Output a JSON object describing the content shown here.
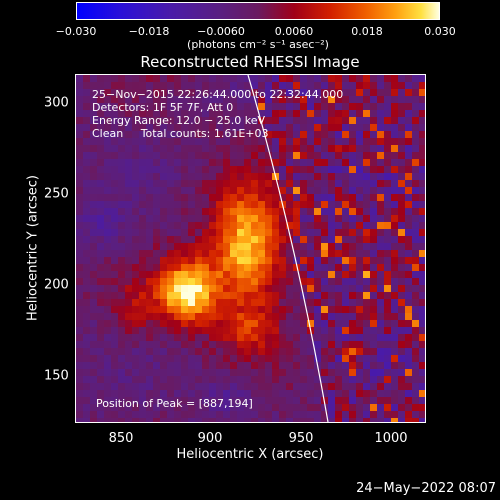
{
  "colorbar": {
    "ticks": [
      "−0.030",
      "−0.018",
      "−0.0060",
      "0.0060",
      "0.018",
      "0.030"
    ],
    "unit": "(photons cm⁻² s⁻¹ asec⁻²)",
    "range": [
      -0.03,
      0.03
    ]
  },
  "title": "Reconstructed RHESSI Image",
  "info": {
    "time": "25−Nov−2015 22:26:44.000 to 22:32:44.000",
    "detectors": "Detectors: 1F 5F 7F, Att 0",
    "energy": "Energy Range: 12.0 − 25.0 keV",
    "clean": "Clean     Total counts: 1.61E+03",
    "peak": "Position of Peak = [887,194]"
  },
  "axes": {
    "xlabel": "Heliocentric X (arcsec)",
    "ylabel": "Heliocentric Y (arcsec)",
    "xticks": [
      "850",
      "900",
      "950",
      "1000"
    ],
    "yticks": [
      "300",
      "250",
      "200",
      "150"
    ],
    "xlim": [
      826,
      1018
    ],
    "ylim": [
      122,
      315
    ]
  },
  "sources": [
    {
      "x": 887,
      "y": 194,
      "strength": 1.0
    },
    {
      "x": 920,
      "y": 218,
      "strength": 0.9
    }
  ],
  "timestamp": "24−May−2022 08:07"
}
